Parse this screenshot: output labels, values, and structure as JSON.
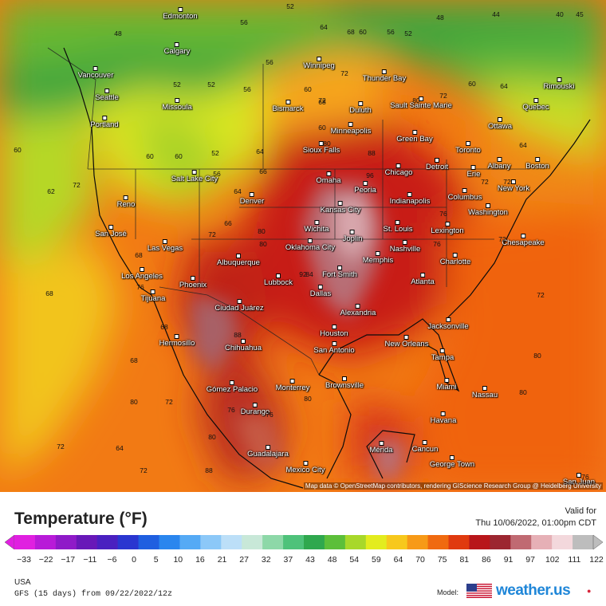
{
  "map": {
    "attribution": "Map data © OpenStreetMap contributors, rendering GIScience Research Group @ Heidelberg University",
    "cities": [
      {
        "name": "Edmonton"
      },
      {
        "name": "Calgary"
      },
      {
        "name": "Vancouver"
      },
      {
        "name": "Seattle"
      },
      {
        "name": "Missoula"
      },
      {
        "name": "Portland"
      },
      {
        "name": "Winnipeg"
      },
      {
        "name": "Thunder Bay"
      },
      {
        "name": "Sault Sainte Marie"
      },
      {
        "name": "Rimouski"
      },
      {
        "name": "Quebec"
      },
      {
        "name": "Ottawa"
      },
      {
        "name": "Bismarck"
      },
      {
        "name": "Duluth"
      },
      {
        "name": "Minneapolis"
      },
      {
        "name": "Green Bay"
      },
      {
        "name": "Toronto"
      },
      {
        "name": "Sioux Falls"
      },
      {
        "name": "Chicago"
      },
      {
        "name": "Detroit"
      },
      {
        "name": "Erie"
      },
      {
        "name": "Albany"
      },
      {
        "name": "Boston"
      },
      {
        "name": "Salt Lake City"
      },
      {
        "name": "Denver"
      },
      {
        "name": "Omaha"
      },
      {
        "name": "Peoria"
      },
      {
        "name": "Indianapolis"
      },
      {
        "name": "Columbus"
      },
      {
        "name": "New York"
      },
      {
        "name": "Reno"
      },
      {
        "name": "Kansas City"
      },
      {
        "name": "Washington"
      },
      {
        "name": "San José"
      },
      {
        "name": "Wichita"
      },
      {
        "name": "St. Louis"
      },
      {
        "name": "Lexington"
      },
      {
        "name": "Las Vegas"
      },
      {
        "name": "Joplin"
      },
      {
        "name": "Chesapeake"
      },
      {
        "name": "Oklahoma City"
      },
      {
        "name": "Nashville"
      },
      {
        "name": "Albuquerque"
      },
      {
        "name": "Memphis"
      },
      {
        "name": "Charlotte"
      },
      {
        "name": "Los Angeles"
      },
      {
        "name": "Fort Smith"
      },
      {
        "name": "Phoenix"
      },
      {
        "name": "Lubbock"
      },
      {
        "name": "Atlanta"
      },
      {
        "name": "Dallas"
      },
      {
        "name": "Tijuana"
      },
      {
        "name": "Ciudad Juárez"
      },
      {
        "name": "Alexandria"
      },
      {
        "name": "Jacksonville"
      },
      {
        "name": "Houston"
      },
      {
        "name": "Hermosillo"
      },
      {
        "name": "New Orleans"
      },
      {
        "name": "San Antonio"
      },
      {
        "name": "Chihuahua"
      },
      {
        "name": "Tampa"
      },
      {
        "name": "Brownsville"
      },
      {
        "name": "Miami"
      },
      {
        "name": "Nassau"
      },
      {
        "name": "Gómez Palacio"
      },
      {
        "name": "Monterrey"
      },
      {
        "name": "Durango"
      },
      {
        "name": "Havana"
      },
      {
        "name": "Guadalajara"
      },
      {
        "name": "Mérida"
      },
      {
        "name": "Cancun"
      },
      {
        "name": "George Town"
      },
      {
        "name": "Mexico City"
      },
      {
        "name": "San Juan"
      }
    ],
    "isolines": [
      "48",
      "56",
      "52",
      "64",
      "60",
      "56",
      "52",
      "48",
      "44",
      "40",
      "45",
      "56",
      "60",
      "52",
      "52",
      "56",
      "60",
      "64",
      "72",
      "60",
      "52",
      "56",
      "66",
      "68",
      "72",
      "68",
      "60",
      "72",
      "80",
      "62",
      "60",
      "64",
      "66",
      "72",
      "80",
      "80",
      "88",
      "96",
      "76",
      "60",
      "64",
      "72",
      "80",
      "72",
      "64",
      "72",
      "68",
      "68",
      "76",
      "72",
      "84",
      "92",
      "88",
      "68",
      "72",
      "76",
      "80",
      "88",
      "80",
      "76",
      "64",
      "68",
      "72",
      "80",
      "72",
      "80",
      "72",
      "76",
      "80",
      "76"
    ]
  },
  "legend": {
    "title": "Temperature (°F)",
    "valid_label": "Valid for",
    "valid_time": "Thu 10/06/2022, 01:00pm CDT",
    "ticks": [
      "−33",
      "−22",
      "−17",
      "−11",
      "−6",
      "0",
      "5",
      "10",
      "16",
      "21",
      "27",
      "32",
      "37",
      "43",
      "48",
      "54",
      "59",
      "64",
      "70",
      "75",
      "81",
      "86",
      "91",
      "97",
      "102",
      "111",
      "122"
    ],
    "colors": [
      "#e020e0",
      "#b81bd8",
      "#8f1ac8",
      "#6818b8",
      "#4a20c0",
      "#2a36d0",
      "#1f5fe0",
      "#2a86ee",
      "#55aaf5",
      "#8cc8f8",
      "#bcdff8",
      "#c8e8d8",
      "#8dd8a8",
      "#4ec27a",
      "#2fa84e",
      "#5cbf3a",
      "#a8d82a",
      "#e3ec1e",
      "#f7c81c",
      "#f79a17",
      "#f06a10",
      "#e03a0f",
      "#b8161a",
      "#9c2630",
      "#c06a72",
      "#e6b0b6",
      "#f3d8dc",
      "#bdbdbd"
    ],
    "region": "USA",
    "run": "GFS (15 days) from 09/22/2022/12z",
    "model_label": "Model:",
    "brand": "weather.us"
  }
}
